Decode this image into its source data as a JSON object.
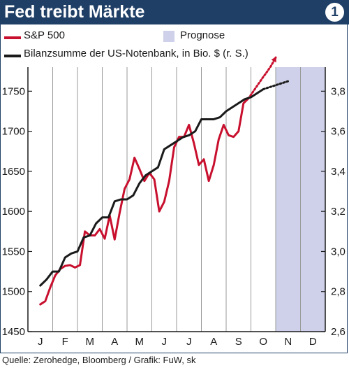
{
  "header": {
    "title": "Fed treibt Märkte",
    "badge": "1"
  },
  "legend": {
    "sp500": "S&P 500",
    "prognose": "Prognose",
    "bilanz": "Bilanzsumme der US-Notenbank, in Bio. $ (r. S.)"
  },
  "colors": {
    "sp500": "#c8102e",
    "bilanz": "#1a1a1a",
    "prognose": "#cfd1ea",
    "header": "#1f3f66"
  },
  "source": "Quelle: Zerohedge, Bloomberg / Grafik: FuW, sk",
  "chart_data": {
    "type": "line",
    "title": "Fed treibt Märkte",
    "months": [
      "J",
      "F",
      "M",
      "A",
      "M",
      "J",
      "J",
      "A",
      "S",
      "O",
      "N",
      "D"
    ],
    "forecast_months": [
      "N",
      "D"
    ],
    "y_left": {
      "ticks": [
        "1450",
        "1500",
        "1550",
        "1600",
        "1650",
        "1700",
        "1750"
      ],
      "min": 1450,
      "max": 1780
    },
    "y_right": {
      "ticks": [
        "2,6",
        "2,8",
        "3,0",
        "3,2",
        "3,4",
        "3,6",
        "3,8"
      ],
      "min": 2.6,
      "max": 3.92
    },
    "grid": "vertical",
    "series": [
      {
        "name": "S&P 500",
        "axis": "left",
        "x": [
          0.0,
          0.2,
          0.4,
          0.6,
          0.8,
          1.0,
          1.2,
          1.4,
          1.6,
          1.8,
          2.0,
          2.2,
          2.4,
          2.6,
          2.8,
          3.0,
          3.2,
          3.4,
          3.6,
          3.8,
          4.0,
          4.2,
          4.4,
          4.6,
          4.8,
          5.0,
          5.2,
          5.4,
          5.6,
          5.8,
          6.0,
          6.2,
          6.4,
          6.6,
          6.8,
          7.0,
          7.2,
          7.4,
          7.6,
          7.8,
          8.0,
          8.2,
          8.4,
          8.6,
          8.8,
          9.0,
          9.1,
          9.3,
          9.5
        ],
        "values": [
          1484,
          1488,
          1505,
          1520,
          1528,
          1532,
          1533,
          1530,
          1533,
          1575,
          1570,
          1570,
          1578,
          1566,
          1595,
          1565,
          1598,
          1628,
          1640,
          1667,
          1653,
          1638,
          1648,
          1640,
          1600,
          1612,
          1638,
          1680,
          1693,
          1693,
          1708,
          1685,
          1658,
          1665,
          1638,
          1658,
          1690,
          1708,
          1695,
          1693,
          1700,
          1735,
          1741,
          1750,
          1759,
          1768,
          1772,
          1781,
          1792
        ],
        "forecast_from_index": 42
      },
      {
        "name": "Bilanzsumme der US-Notenbank, in Bio. $ (r. S.)",
        "axis": "right",
        "x": [
          0.0,
          0.25,
          0.5,
          0.75,
          1.0,
          1.25,
          1.5,
          1.75,
          2.0,
          2.25,
          2.5,
          2.75,
          3.0,
          3.25,
          3.5,
          3.75,
          4.0,
          4.25,
          4.5,
          4.75,
          5.0,
          5.25,
          5.5,
          5.75,
          6.0,
          6.25,
          6.5,
          6.75,
          7.0,
          7.25,
          7.5,
          7.75,
          8.0,
          8.25,
          8.5,
          8.75,
          9.0,
          9.25,
          9.5,
          9.75,
          10.0
        ],
        "values": [
          2.83,
          2.86,
          2.9,
          2.9,
          2.97,
          2.99,
          3.0,
          3.07,
          3.08,
          3.14,
          3.17,
          3.17,
          3.25,
          3.26,
          3.26,
          3.28,
          3.34,
          3.38,
          3.4,
          3.42,
          3.51,
          3.53,
          3.55,
          3.57,
          3.58,
          3.6,
          3.66,
          3.66,
          3.66,
          3.67,
          3.7,
          3.72,
          3.74,
          3.76,
          3.77,
          3.79,
          3.81,
          3.82,
          3.83,
          3.84,
          3.85
        ],
        "forecast_from_index": 36
      }
    ]
  }
}
